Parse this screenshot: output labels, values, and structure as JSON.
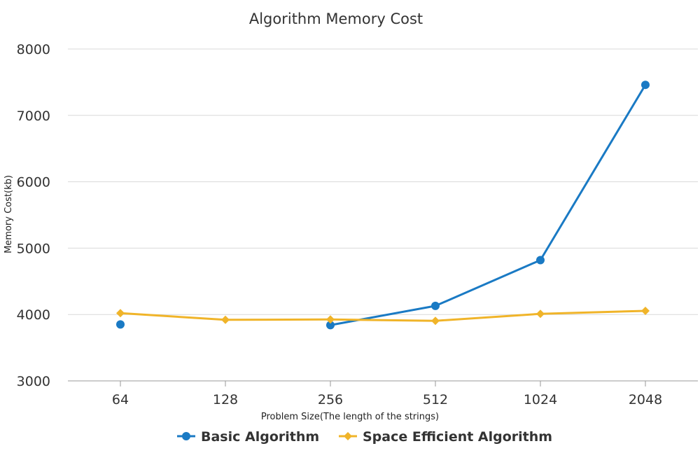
{
  "chart_data": {
    "type": "line",
    "title": "Algorithm Memory Cost",
    "xlabel": "Problem Size(The length of the strings)",
    "ylabel": "Memory Cost(kb)",
    "categories": [
      "64",
      "128",
      "256",
      "512",
      "1024",
      "2048"
    ],
    "ylim": [
      3000,
      8000
    ],
    "yticks": [
      3000,
      4000,
      5000,
      6000,
      7000,
      8000
    ],
    "grid": true,
    "legend_position": "bottom",
    "series": [
      {
        "name": "Basic Algorithm",
        "color": "#1a7ac4",
        "marker": "circle",
        "values": [
          3850,
          null,
          3840,
          4130,
          4820,
          7460
        ]
      },
      {
        "name": "Space Efficient Algorithm",
        "color": "#f0b429",
        "marker": "diamond",
        "values": [
          4020,
          3920,
          3925,
          3905,
          4010,
          4055
        ]
      }
    ]
  }
}
